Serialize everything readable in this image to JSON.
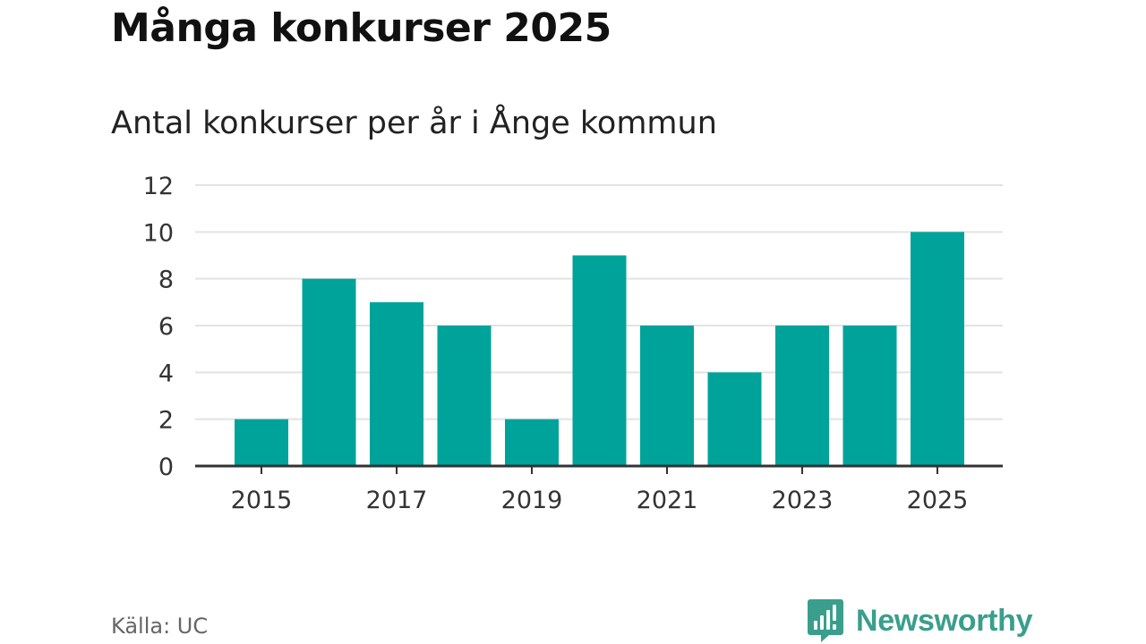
{
  "title": "Många konkurser 2025",
  "subtitle": "Antal konkurser per år i Ånge kommun",
  "source": "Källa: UC",
  "brand": {
    "name": "Newsworthy",
    "icon": "newsworthy-logo-icon",
    "color": "#3a9e8c"
  },
  "colors": {
    "bar": "#00a39a",
    "grid": "#e3e3e3",
    "axis": "#333333"
  },
  "chart_data": {
    "type": "bar",
    "title": "Många konkurser 2025",
    "subtitle": "Antal konkurser per år i Ånge kommun",
    "xlabel": "",
    "ylabel": "",
    "categories": [
      "2015",
      "2016",
      "2017",
      "2018",
      "2019",
      "2020",
      "2021",
      "2022",
      "2023",
      "2024",
      "2025"
    ],
    "values": [
      2,
      8,
      7,
      6,
      2,
      9,
      6,
      4,
      6,
      6,
      10
    ],
    "x_tick_labels": [
      "2015",
      "2017",
      "2019",
      "2021",
      "2023",
      "2025"
    ],
    "y_ticks": [
      0,
      2,
      4,
      6,
      8,
      10,
      12
    ],
    "ylim": [
      0,
      12
    ],
    "grid": true,
    "legend": "none"
  }
}
